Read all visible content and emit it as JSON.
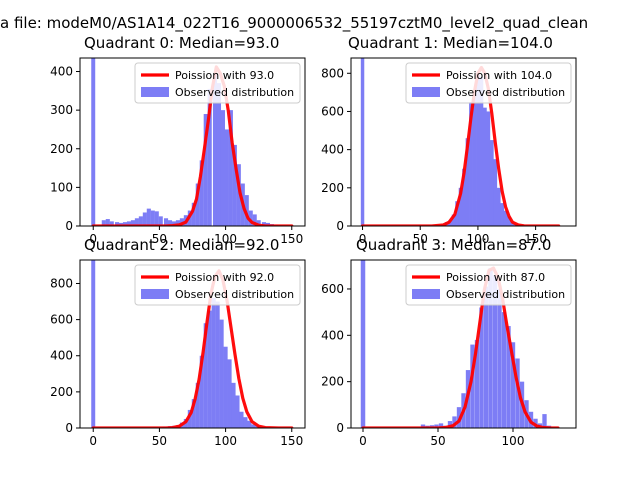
{
  "page_title": "a file: modeM0/AS1A14_022T16_9000006532_55197cztM0_level2_quad_clean",
  "chart_data": [
    {
      "type": "bar",
      "title": "Quadrant 0: Median=93.0",
      "median": 93.0,
      "xlim": [
        -10,
        160
      ],
      "ylim": [
        0,
        435
      ],
      "xticks": [
        0,
        50,
        100,
        150
      ],
      "yticks": [
        0,
        100,
        200,
        300,
        400
      ],
      "legend": {
        "position": "top-right",
        "entries": [
          "Poission with 93.0",
          "Observed distribution"
        ]
      },
      "colors": {
        "hist": "#7d7df5",
        "fit": "#ff0000"
      },
      "bar_width": 3.1,
      "zero_spike": {
        "x": 0,
        "value": 435
      },
      "hist_x": [
        8,
        11,
        14,
        18,
        21,
        24,
        27,
        30,
        33,
        36,
        39,
        42,
        45,
        48,
        51,
        55,
        58,
        61,
        64,
        67,
        70,
        73,
        76,
        79,
        82,
        85,
        88,
        92,
        95,
        98,
        101,
        104,
        107,
        110,
        113,
        116,
        119,
        122,
        125,
        129,
        132,
        135,
        138,
        141
      ],
      "hist_y": [
        15,
        18,
        12,
        10,
        8,
        10,
        12,
        15,
        20,
        25,
        35,
        45,
        40,
        38,
        25,
        20,
        15,
        12,
        15,
        20,
        28,
        40,
        60,
        110,
        170,
        290,
        355,
        395,
        370,
        300,
        250,
        300,
        210,
        160,
        110,
        80,
        40,
        30,
        15,
        10,
        8,
        5,
        3,
        2
      ],
      "fit_x": [
        0,
        10,
        20,
        30,
        40,
        50,
        55,
        60,
        65,
        70,
        75,
        78,
        81,
        84,
        87,
        90,
        93,
        96,
        99,
        102,
        105,
        108,
        111,
        114,
        117,
        120,
        125,
        130,
        135,
        140,
        145,
        150
      ],
      "fit_y": [
        0,
        0,
        0,
        0,
        0,
        0,
        0,
        1,
        3,
        10,
        38,
        70,
        128,
        200,
        275,
        358,
        412,
        395,
        362,
        300,
        215,
        146,
        85,
        45,
        20,
        9,
        2,
        0,
        0,
        0,
        0,
        0
      ]
    },
    {
      "type": "bar",
      "title": "Quadrant 1: Median=104.0",
      "median": 104.0,
      "xlim": [
        -10,
        185
      ],
      "ylim": [
        0,
        880
      ],
      "xticks": [
        0,
        50,
        100,
        150
      ],
      "yticks": [
        0,
        200,
        400,
        600,
        800
      ],
      "legend": {
        "position": "top-right",
        "entries": [
          "Poission with 104.0",
          "Observed distribution"
        ]
      },
      "colors": {
        "hist": "#7d7df5",
        "fit": "#ff0000"
      },
      "bar_width": 3.3,
      "zero_spike": {
        "x": 0,
        "value": 880
      },
      "hist_x": [
        70,
        73,
        76,
        79,
        82,
        85,
        88,
        91,
        94,
        97,
        100,
        103,
        106,
        109,
        112,
        115,
        118,
        121,
        124,
        127,
        130,
        133,
        136,
        139,
        142,
        145,
        148,
        151
      ],
      "hist_y": [
        10,
        20,
        30,
        60,
        130,
        200,
        300,
        460,
        650,
        700,
        800,
        780,
        620,
        600,
        450,
        350,
        200,
        120,
        80,
        50,
        20,
        10,
        8,
        5,
        3,
        2,
        2,
        1
      ],
      "fit_x": [
        0,
        20,
        40,
        60,
        70,
        75,
        80,
        85,
        88,
        91,
        94,
        97,
        100,
        103,
        106,
        109,
        112,
        115,
        118,
        121,
        124,
        127,
        130,
        135,
        140,
        150,
        170
      ],
      "fit_y": [
        0,
        0,
        0,
        0,
        5,
        20,
        60,
        170,
        280,
        420,
        570,
        705,
        800,
        830,
        800,
        720,
        590,
        440,
        300,
        180,
        100,
        50,
        20,
        5,
        1,
        0,
        0
      ]
    },
    {
      "type": "bar",
      "title": "Quadrant 2: Median=92.0",
      "median": 92.0,
      "xlim": [
        -10,
        160
      ],
      "ylim": [
        0,
        930
      ],
      "xticks": [
        0,
        50,
        100,
        150
      ],
      "yticks": [
        0,
        200,
        400,
        600,
        800
      ],
      "legend": {
        "position": "top-right",
        "entries": [
          "Poission with 92.0",
          "Observed distribution"
        ]
      },
      "colors": {
        "hist": "#7d7df5",
        "fit": "#ff0000"
      },
      "bar_width": 3.1,
      "zero_spike": {
        "x": 0,
        "value": 930
      },
      "hist_x": [
        40,
        47,
        54,
        58,
        61,
        64,
        67,
        70,
        73,
        76,
        79,
        82,
        85,
        88,
        91,
        94,
        97,
        100,
        103,
        106,
        109,
        112,
        115,
        118,
        121,
        124,
        127,
        130,
        133
      ],
      "hist_y": [
        3,
        5,
        8,
        10,
        12,
        15,
        30,
        50,
        100,
        160,
        250,
        400,
        580,
        650,
        720,
        700,
        600,
        450,
        380,
        250,
        180,
        90,
        60,
        40,
        20,
        12,
        8,
        5,
        3
      ],
      "fit_x": [
        0,
        20,
        40,
        55,
        60,
        65,
        70,
        74,
        77,
        80,
        83,
        86,
        89,
        92,
        95,
        98,
        101,
        104,
        107,
        110,
        113,
        116,
        120,
        125,
        130,
        140,
        150
      ],
      "fit_y": [
        0,
        0,
        0,
        0,
        2,
        10,
        35,
        85,
        160,
        270,
        420,
        590,
        745,
        840,
        870,
        820,
        710,
        560,
        410,
        275,
        165,
        90,
        35,
        10,
        2,
        0,
        0
      ]
    },
    {
      "type": "bar",
      "title": "Quadrant 3: Median=87.0",
      "median": 87.0,
      "xlim": [
        -8,
        142
      ],
      "ylim": [
        0,
        725
      ],
      "xticks": [
        0,
        50,
        100
      ],
      "yticks": [
        0,
        200,
        400,
        600
      ],
      "legend": {
        "position": "top-right",
        "entries": [
          "Poission with 87.0",
          "Observed distribution"
        ]
      },
      "colors": {
        "hist": "#7d7df5",
        "fit": "#ff0000"
      },
      "bar_width": 2.9,
      "zero_spike": {
        "x": 0,
        "value": 725
      },
      "hist_x": [
        40,
        43,
        46,
        49,
        52,
        55,
        58,
        61,
        64,
        67,
        70,
        73,
        76,
        79,
        82,
        85,
        88,
        91,
        94,
        97,
        100,
        103,
        106,
        109,
        112,
        115,
        118,
        121,
        124
      ],
      "hist_y": [
        15,
        10,
        12,
        15,
        20,
        10,
        30,
        50,
        90,
        150,
        250,
        360,
        380,
        520,
        610,
        690,
        660,
        600,
        500,
        440,
        370,
        300,
        200,
        120,
        70,
        40,
        20,
        60,
        10
      ],
      "fit_x": [
        0,
        20,
        40,
        50,
        55,
        60,
        64,
        68,
        72,
        75,
        78,
        81,
        84,
        87,
        90,
        93,
        96,
        99,
        102,
        105,
        108,
        112,
        116,
        120,
        125,
        130
      ],
      "fit_y": [
        0,
        0,
        0,
        0,
        2,
        10,
        30,
        90,
        200,
        320,
        460,
        600,
        680,
        690,
        650,
        560,
        440,
        330,
        220,
        130,
        70,
        25,
        8,
        2,
        0,
        0
      ]
    }
  ]
}
